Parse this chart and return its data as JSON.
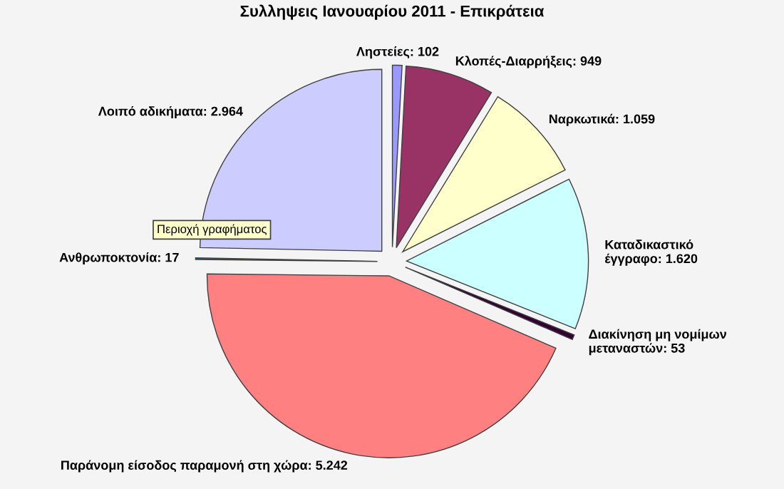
{
  "chart_data": {
    "type": "pie",
    "title": "Συλληψεις Ιανουαρίου 2011 - Επικράτεια",
    "categories": [
      "Ληστείες",
      "Κλοπές-Διαρρήξεις",
      "Ναρκωτικά",
      "Καταδικαστικό έγγραφο",
      "Διακίνηση μη νομίμων μεταναστών",
      "Παράνομη είσοδος παραμονή στη χώρα",
      "Ανθρωποκτονία",
      "Λοιπό αδικήματα"
    ],
    "values": [
      102,
      949,
      1059,
      1620,
      53,
      5242,
      17,
      2964
    ],
    "value_labels": [
      "102",
      "949",
      "1.059",
      "1.620",
      "53",
      "5.242",
      "17",
      "2.964"
    ],
    "colors": [
      "#9999ff",
      "#993366",
      "#ffffcc",
      "#ccffff",
      "#330033",
      "#ff8080",
      "#0066cc",
      "#ccccff"
    ],
    "annotations": [
      "Περιοχή γραφήματος"
    ],
    "legend": false
  }
}
